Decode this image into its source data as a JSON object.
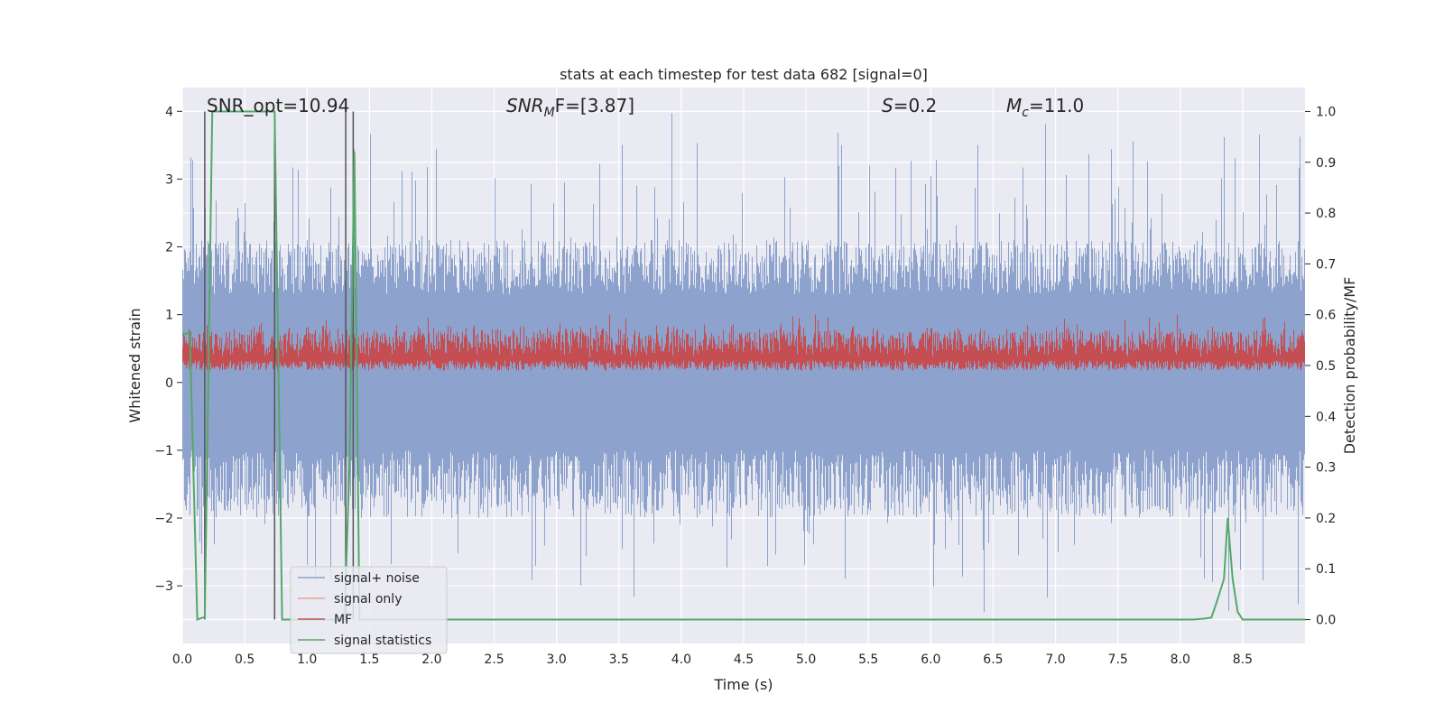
{
  "chart_data": {
    "type": "line",
    "title": "stats at each timestep for test data 682 [signal=0]",
    "xlabel": "Time (s)",
    "ylabel": "Whitened strain",
    "y2label": "Detection probability/MF",
    "xlim": [
      0.0,
      9.0
    ],
    "ylim": [
      -3.85,
      4.35
    ],
    "y2lim": [
      -0.047,
      1.047
    ],
    "x_ticks": [
      "0.0",
      "0.5",
      "1.0",
      "1.5",
      "2.0",
      "2.5",
      "3.0",
      "3.5",
      "4.0",
      "4.5",
      "5.0",
      "5.5",
      "6.0",
      "6.5",
      "7.0",
      "7.5",
      "8.0",
      "8.5"
    ],
    "y_ticks": [
      "−3",
      "−2",
      "−1",
      "0",
      "1",
      "2",
      "3",
      "4"
    ],
    "y2_ticks": [
      "0.0",
      "0.1",
      "0.2",
      "0.3",
      "0.4",
      "0.5",
      "0.6",
      "0.7",
      "0.8",
      "0.9",
      "1.0"
    ],
    "grid": true,
    "legend_position": "lower-left",
    "annotations": {
      "snr_opt": "SNR_opt=10.94",
      "snr_mf_main": "SNR",
      "snr_mf_sub": "M",
      "snr_mf_rest": "F=[3.87]",
      "s_main": "S",
      "s_rest": "=0.2",
      "mc_main": "M",
      "mc_sub": "c",
      "mc_rest": "=11.0"
    },
    "series": [
      {
        "name": "signal+ noise",
        "color": "#8da2cc",
        "kind": "noise",
        "amplitude_range": [
          -3.5,
          4.0
        ]
      },
      {
        "name": "signal only",
        "color": "#e8a58b",
        "kind": "flat"
      },
      {
        "name": "MF",
        "color": "#c44e52",
        "kind": "mf",
        "axis": "right",
        "range": [
          0.49,
          0.6
        ]
      },
      {
        "name": "signal statistics",
        "color": "#55a868",
        "axis": "right",
        "x": [
          0.0,
          0.06,
          0.12,
          0.18,
          0.24,
          0.3,
          0.4,
          0.5,
          0.6,
          0.7,
          0.74,
          0.8,
          0.9,
          1.0,
          1.2,
          1.3,
          1.34,
          1.38,
          1.42,
          1.46,
          1.6,
          2.0,
          3.0,
          4.0,
          5.0,
          6.0,
          7.0,
          8.0,
          8.1,
          8.2,
          8.25,
          8.3,
          8.35,
          8.38,
          8.42,
          8.46,
          8.5,
          8.6,
          8.7,
          8.8,
          9.0
        ],
        "y": [
          0.56,
          0.565,
          0.0,
          0.005,
          1.0,
          1.0,
          1.0,
          1.0,
          1.0,
          1.0,
          1.0,
          0.0,
          0.0,
          0.0,
          0.0,
          0.0,
          0.3,
          0.92,
          0.0,
          0.0,
          0.0,
          0.0,
          0.0,
          0.0,
          0.0,
          0.0,
          0.0,
          0.0,
          0.0,
          0.002,
          0.004,
          0.04,
          0.08,
          0.2,
          0.08,
          0.015,
          0.0,
          0.0,
          0.0,
          0.0,
          0.0
        ]
      },
      {
        "name": "",
        "color": "#555555",
        "kind": "vlines",
        "axis": "right",
        "x": [
          0.18,
          0.74,
          1.31,
          1.37
        ]
      }
    ]
  }
}
